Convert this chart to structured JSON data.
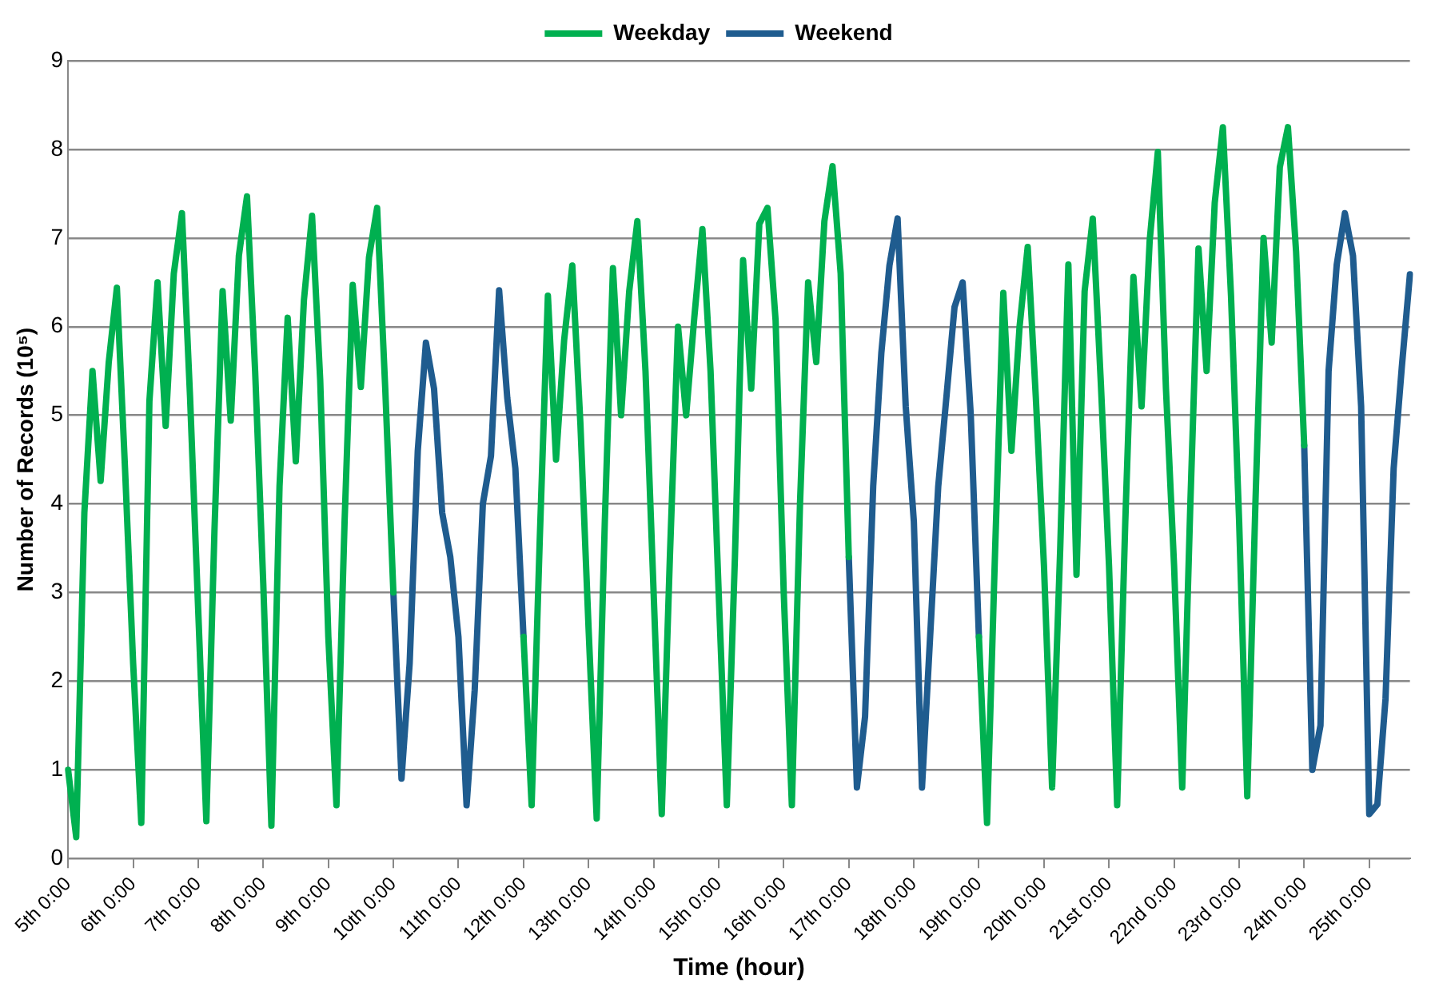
{
  "chart_data": {
    "type": "line",
    "xlabel": "Time (hour)",
    "ylabel": "Number of Records (10⁵)",
    "ylim": [
      0,
      9
    ],
    "categories": [
      "5th 0:00",
      null,
      null,
      null,
      null,
      null,
      null,
      null,
      "6th 0:00",
      null,
      null,
      null,
      null,
      null,
      null,
      null,
      "7th 0:00",
      null,
      null,
      null,
      null,
      null,
      null,
      null,
      "8th 0:00",
      null,
      null,
      null,
      null,
      null,
      null,
      null,
      "9th 0:00",
      null,
      null,
      null,
      null,
      null,
      null,
      null,
      "10th 0:00",
      null,
      null,
      null,
      null,
      null,
      null,
      null,
      "11th 0:00",
      null,
      null,
      null,
      null,
      null,
      null,
      null,
      "12th 0:00",
      null,
      null,
      null,
      null,
      null,
      null,
      null,
      "13th 0:00",
      null,
      null,
      null,
      null,
      null,
      null,
      null,
      "14th 0:00",
      null,
      null,
      null,
      null,
      null,
      null,
      null,
      "15th 0:00",
      null,
      null,
      null,
      null,
      null,
      null,
      null,
      "16th 0:00",
      null,
      null,
      null,
      null,
      null,
      null,
      null,
      "17th 0:00",
      null,
      null,
      null,
      null,
      null,
      null,
      null,
      "18th 0:00",
      null,
      null,
      null,
      null,
      null,
      null,
      null,
      "19th 0:00",
      null,
      null,
      null,
      null,
      null,
      null,
      null,
      "20th 0:00",
      null,
      null,
      null,
      null,
      null,
      null,
      null,
      "21st 0:00",
      null,
      null,
      null,
      null,
      null,
      null,
      null,
      "22nd 0:00",
      null,
      null,
      null,
      null,
      null,
      null,
      null,
      "23rd 0:00",
      null,
      null,
      null,
      null,
      null,
      null,
      null,
      "24th 0:00",
      null,
      null,
      null,
      null,
      null,
      null,
      null,
      "25th 0:00",
      null,
      null,
      null,
      null,
      null
    ],
    "yticks": [
      0,
      1,
      2,
      3,
      4,
      5,
      6,
      7,
      8,
      9
    ],
    "grid": "y",
    "legend": "top",
    "marker": "none",
    "line_style": "solid",
    "series": [
      {
        "name": "Weekday",
        "color": "#00b050",
        "values": [
          1.0,
          0.24,
          3.9,
          5.5,
          4.26,
          5.6,
          6.44,
          4.4,
          2.2,
          0.4,
          5.16,
          6.5,
          4.88,
          6.6,
          7.28,
          5.2,
          2.8,
          0.42,
          3.7,
          6.4,
          4.94,
          6.8,
          7.47,
          5.5,
          3.1,
          0.37,
          4.2,
          6.1,
          4.48,
          6.3,
          7.25,
          5.4,
          2.5,
          0.6,
          3.8,
          6.47,
          5.32,
          6.78,
          7.34,
          5.3,
          3.0,
          null,
          null,
          null,
          null,
          null,
          null,
          null,
          null,
          null,
          null,
          null,
          null,
          null,
          null,
          null,
          2.5,
          0.6,
          3.6,
          6.35,
          4.5,
          5.85,
          6.69,
          4.9,
          2.6,
          0.45,
          3.8,
          6.66,
          5.0,
          6.4,
          7.19,
          5.5,
          3.0,
          0.5,
          3.4,
          6.0,
          5.0,
          6.1,
          7.1,
          5.5,
          3.0,
          0.6,
          3.4,
          6.75,
          5.3,
          7.16,
          7.34,
          6.07,
          3.0,
          0.6,
          4.0,
          6.5,
          5.6,
          7.19,
          7.81,
          6.6,
          3.4,
          null,
          null,
          null,
          null,
          null,
          null,
          null,
          null,
          null,
          null,
          null,
          null,
          null,
          null,
          null,
          2.5,
          0.4,
          3.5,
          6.38,
          4.6,
          6.0,
          6.9,
          5.2,
          3.3,
          0.8,
          3.5,
          6.7,
          3.2,
          6.4,
          7.22,
          5.35,
          3.3,
          0.6,
          3.8,
          6.56,
          5.1,
          6.97,
          7.97,
          5.3,
          3.3,
          0.8,
          4.0,
          6.88,
          5.5,
          7.4,
          8.25,
          6.35,
          3.8,
          0.7,
          4.0,
          7.0,
          5.82,
          7.8,
          8.25,
          6.85,
          4.66,
          null,
          null,
          null,
          null,
          null,
          null,
          null,
          null,
          null,
          null,
          null,
          null,
          null
        ]
      },
      {
        "name": "Weekend",
        "color": "#1f5c8f",
        "values": [
          null,
          null,
          null,
          null,
          null,
          null,
          null,
          null,
          null,
          null,
          null,
          null,
          null,
          null,
          null,
          null,
          null,
          null,
          null,
          null,
          null,
          null,
          null,
          null,
          null,
          null,
          null,
          null,
          null,
          null,
          null,
          null,
          null,
          null,
          null,
          null,
          null,
          null,
          null,
          null,
          3.0,
          0.9,
          2.2,
          4.6,
          5.82,
          5.3,
          3.9,
          3.4,
          2.5,
          0.6,
          1.9,
          4.0,
          4.54,
          6.41,
          5.2,
          4.4,
          2.5,
          null,
          null,
          null,
          null,
          null,
          null,
          null,
          null,
          null,
          null,
          null,
          null,
          null,
          null,
          null,
          null,
          null,
          null,
          null,
          null,
          null,
          null,
          null,
          null,
          null,
          null,
          null,
          null,
          null,
          null,
          null,
          null,
          null,
          null,
          null,
          null,
          null,
          null,
          null,
          3.4,
          0.8,
          1.6,
          4.2,
          5.7,
          6.69,
          7.22,
          5.1,
          3.8,
          0.8,
          2.5,
          4.2,
          5.2,
          6.22,
          6.5,
          5.0,
          2.5,
          null,
          null,
          null,
          null,
          null,
          null,
          null,
          null,
          null,
          null,
          null,
          null,
          null,
          null,
          null,
          null,
          null,
          null,
          null,
          null,
          null,
          null,
          null,
          null,
          null,
          null,
          null,
          null,
          null,
          null,
          null,
          null,
          null,
          null,
          null,
          null,
          null,
          null,
          null,
          4.66,
          1.0,
          1.5,
          5.5,
          6.7,
          7.28,
          6.8,
          5.1,
          0.5,
          0.61,
          1.8,
          4.4,
          5.54,
          6.59
        ]
      }
    ]
  }
}
